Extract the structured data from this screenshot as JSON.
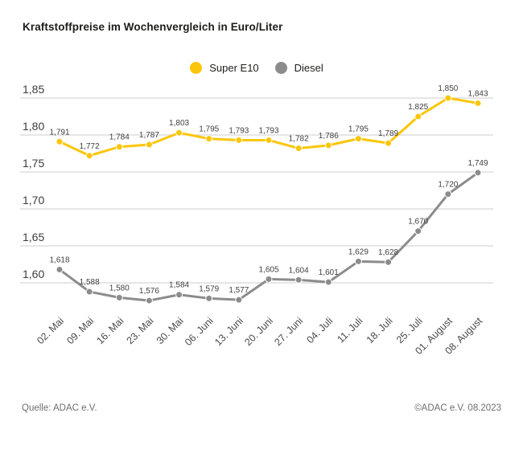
{
  "title": "Kraftstoffpreise im Wochenvergleich in Euro/Liter",
  "legend": [
    {
      "label": "Super E10",
      "color": "#FBC609"
    },
    {
      "label": "Diesel",
      "color": "#8C8C8C"
    }
  ],
  "footer": {
    "source": "Quelle: ADAC e.V.",
    "copyright": "©ADAC e.V. 08.2023"
  },
  "chart_data": {
    "type": "line",
    "title": "Kraftstoffpreise im Wochenvergleich in Euro/Liter",
    "categories": [
      "02. Mai",
      "09. Mai",
      "16. Mai",
      "23. Mai",
      "30. Mai",
      "06. Juni",
      "13. Juni",
      "20. Juni",
      "27. Juni",
      "04. Juli",
      "11. Juli",
      "18. Juli",
      "25. Juli",
      "01. August",
      "08. August"
    ],
    "series": [
      {
        "name": "Super E10",
        "color": "#FBC609",
        "values": [
          1.791,
          1.772,
          1.784,
          1.787,
          1.803,
          1.795,
          1.793,
          1.793,
          1.782,
          1.786,
          1.795,
          1.789,
          1.825,
          1.85,
          1.843
        ]
      },
      {
        "name": "Diesel",
        "color": "#8C8C8C",
        "values": [
          1.618,
          1.588,
          1.58,
          1.576,
          1.584,
          1.579,
          1.577,
          1.605,
          1.604,
          1.601,
          1.629,
          1.628,
          1.67,
          1.72,
          1.749
        ]
      }
    ],
    "yticks": [
      1.85,
      1.8,
      1.75,
      1.7,
      1.65,
      1.6
    ],
    "ylim": [
      1.555,
      1.875
    ],
    "grid": true,
    "legend_position": "top-center",
    "decimal_separator": ","
  }
}
